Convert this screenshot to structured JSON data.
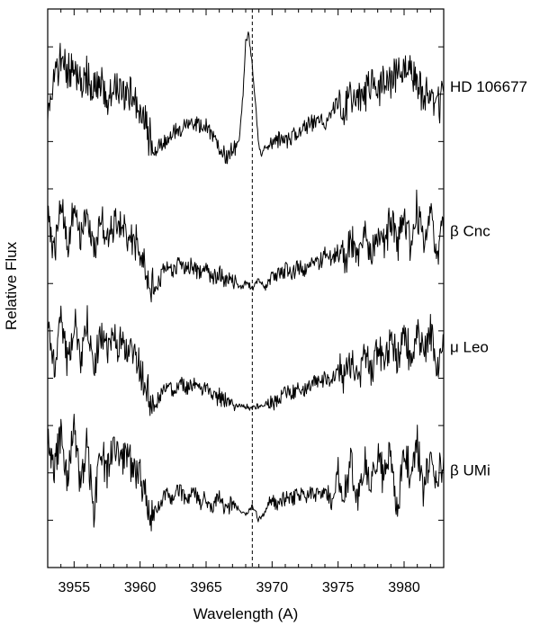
{
  "chart_data": {
    "type": "line",
    "title": "",
    "xlabel": "Wavelength (A)",
    "ylabel": "Relative Flux",
    "xlim": [
      3953,
      3983
    ],
    "x_ticks": [
      3955,
      3960,
      3965,
      3970,
      3975,
      3980
    ],
    "x_tick_labels": [
      "3955",
      "3960",
      "3965",
      "3970",
      "3975",
      "3980"
    ],
    "y_tick_labels": false,
    "reference_line": {
      "x": 3968.5,
      "style": "dashed"
    },
    "grid": false,
    "legend": "none",
    "series": [
      {
        "name": "HD 106677",
        "display_offset": 3.9,
        "x": [
          3953.0,
          3953.5,
          3954.0,
          3954.5,
          3955.0,
          3955.5,
          3956.0,
          3956.5,
          3957.0,
          3957.5,
          3958.0,
          3958.5,
          3959.0,
          3959.5,
          3960.0,
          3960.5,
          3961.0,
          3961.5,
          3962.0,
          3962.5,
          3963.0,
          3963.5,
          3964.0,
          3964.5,
          3965.0,
          3965.5,
          3966.0,
          3966.5,
          3967.0,
          3967.5,
          3967.8,
          3968.0,
          3968.2,
          3968.5,
          3968.8,
          3969.0,
          3969.2,
          3969.5,
          3970.0,
          3970.5,
          3971.0,
          3971.5,
          3972.0,
          3972.5,
          3973.0,
          3973.5,
          3974.0,
          3974.5,
          3975.0,
          3975.5,
          3976.0,
          3976.5,
          3977.0,
          3977.5,
          3978.0,
          3978.5,
          3979.0,
          3979.5,
          3980.0,
          3980.5,
          3981.0,
          3981.5,
          3982.0,
          3982.5,
          3983.0
        ],
        "y": [
          0.55,
          0.75,
          0.95,
          0.85,
          0.9,
          0.7,
          0.8,
          0.6,
          0.75,
          0.5,
          0.72,
          0.68,
          0.6,
          0.62,
          0.45,
          0.25,
          0.0,
          0.05,
          0.1,
          0.2,
          0.22,
          0.28,
          0.3,
          0.25,
          0.28,
          0.15,
          0.05,
          -0.05,
          0.0,
          0.1,
          0.6,
          1.15,
          1.25,
          0.9,
          0.4,
          0.05,
          -0.05,
          0.05,
          0.1,
          0.12,
          0.1,
          0.15,
          0.2,
          0.25,
          0.3,
          0.35,
          0.3,
          0.4,
          0.5,
          0.45,
          0.55,
          0.6,
          0.55,
          0.7,
          0.65,
          0.75,
          0.7,
          0.85,
          0.8,
          0.9,
          0.7,
          0.55,
          0.6,
          0.5,
          0.55
        ]
      },
      {
        "name": "β Cnc",
        "display_offset": 2.6,
        "x": [
          3953.0,
          3953.5,
          3954.0,
          3954.5,
          3955.0,
          3955.5,
          3956.0,
          3956.5,
          3957.0,
          3957.5,
          3958.0,
          3958.5,
          3959.0,
          3959.5,
          3960.0,
          3960.5,
          3961.0,
          3961.5,
          3962.0,
          3962.5,
          3963.0,
          3963.5,
          3964.0,
          3964.5,
          3965.0,
          3965.5,
          3966.0,
          3966.5,
          3967.0,
          3967.5,
          3968.0,
          3968.5,
          3969.0,
          3969.5,
          3970.0,
          3970.5,
          3971.0,
          3971.5,
          3972.0,
          3972.5,
          3973.0,
          3973.5,
          3974.0,
          3974.5,
          3975.0,
          3975.5,
          3976.0,
          3976.5,
          3977.0,
          3977.5,
          3978.0,
          3978.5,
          3979.0,
          3979.5,
          3980.0,
          3980.5,
          3981.0,
          3981.5,
          3982.0,
          3982.5,
          3983.0
        ],
        "y": [
          0.7,
          0.2,
          0.8,
          0.3,
          0.75,
          0.4,
          0.65,
          0.2,
          0.6,
          0.35,
          0.55,
          0.5,
          0.45,
          0.4,
          0.2,
          0.0,
          -0.15,
          -0.05,
          0.1,
          0.0,
          0.15,
          0.05,
          0.1,
          0.0,
          0.05,
          -0.05,
          0.0,
          -0.1,
          -0.05,
          -0.15,
          -0.1,
          -0.15,
          -0.05,
          -0.15,
          -0.05,
          0.0,
          0.05,
          0.0,
          0.1,
          0.05,
          0.15,
          0.1,
          0.2,
          0.15,
          0.25,
          0.1,
          0.35,
          0.15,
          0.45,
          0.2,
          0.5,
          0.3,
          0.6,
          0.25,
          0.65,
          0.3,
          0.7,
          0.35,
          0.65,
          0.2,
          0.55
        ]
      },
      {
        "name": "μ Leo",
        "display_offset": 1.4,
        "x": [
          3953.0,
          3953.5,
          3954.0,
          3954.5,
          3955.0,
          3955.5,
          3956.0,
          3956.5,
          3957.0,
          3957.5,
          3958.0,
          3958.5,
          3959.0,
          3959.5,
          3960.0,
          3960.5,
          3961.0,
          3961.5,
          3962.0,
          3962.5,
          3963.0,
          3963.5,
          3964.0,
          3964.5,
          3965.0,
          3965.5,
          3966.0,
          3966.5,
          3967.0,
          3967.5,
          3968.0,
          3968.5,
          3969.0,
          3969.5,
          3970.0,
          3970.5,
          3971.0,
          3971.5,
          3972.0,
          3972.5,
          3973.0,
          3973.5,
          3974.0,
          3974.5,
          3975.0,
          3975.5,
          3976.0,
          3976.5,
          3977.0,
          3977.5,
          3978.0,
          3978.5,
          3979.0,
          3979.5,
          3980.0,
          3980.5,
          3981.0,
          3981.5,
          3982.0,
          3982.5,
          3983.0
        ],
        "y": [
          0.7,
          0.15,
          0.75,
          0.25,
          0.7,
          0.3,
          0.65,
          0.2,
          0.6,
          0.4,
          0.5,
          0.45,
          0.4,
          0.35,
          0.2,
          0.0,
          -0.2,
          -0.1,
          0.05,
          -0.05,
          0.05,
          0.0,
          0.05,
          -0.05,
          0.0,
          -0.1,
          -0.1,
          -0.15,
          -0.15,
          -0.2,
          -0.2,
          -0.22,
          -0.2,
          -0.18,
          -0.15,
          -0.1,
          -0.05,
          -0.05,
          0.0,
          0.0,
          0.05,
          0.05,
          0.1,
          0.05,
          0.2,
          0.1,
          0.3,
          0.1,
          0.4,
          0.15,
          0.45,
          0.2,
          0.55,
          0.25,
          0.6,
          0.3,
          0.65,
          0.3,
          0.6,
          0.2,
          0.55
        ]
      },
      {
        "name": "β UMi",
        "display_offset": 0.2,
        "x": [
          3953.0,
          3953.5,
          3954.0,
          3954.5,
          3955.0,
          3955.5,
          3956.0,
          3956.5,
          3957.0,
          3957.5,
          3958.0,
          3958.5,
          3959.0,
          3959.5,
          3960.0,
          3960.5,
          3961.0,
          3961.5,
          3962.0,
          3962.5,
          3963.0,
          3963.5,
          3964.0,
          3964.5,
          3965.0,
          3965.5,
          3966.0,
          3966.5,
          3967.0,
          3967.5,
          3968.0,
          3968.5,
          3969.0,
          3969.5,
          3970.0,
          3970.5,
          3971.0,
          3971.5,
          3972.0,
          3972.5,
          3973.0,
          3973.5,
          3974.0,
          3974.5,
          3975.0,
          3975.5,
          3976.0,
          3976.5,
          3977.0,
          3977.5,
          3978.0,
          3978.5,
          3979.0,
          3979.5,
          3980.0,
          3980.5,
          3981.0,
          3981.5,
          3982.0,
          3982.5,
          3983.0
        ],
        "y": [
          0.7,
          0.3,
          0.75,
          0.2,
          0.8,
          0.15,
          0.6,
          -0.1,
          0.55,
          0.3,
          0.6,
          0.45,
          0.5,
          0.3,
          0.25,
          0.05,
          -0.15,
          -0.05,
          0.1,
          0.0,
          0.15,
          0.0,
          0.1,
          0.0,
          0.05,
          -0.05,
          0.05,
          -0.1,
          0.0,
          -0.1,
          -0.15,
          -0.05,
          -0.2,
          -0.1,
          0.0,
          -0.05,
          0.05,
          0.0,
          0.1,
          0.05,
          0.1,
          0.05,
          0.15,
          0.0,
          0.3,
          0.05,
          0.4,
          0.0,
          0.45,
          0.1,
          0.5,
          0.2,
          0.6,
          -0.15,
          0.55,
          0.3,
          0.6,
          0.1,
          0.55,
          0.2,
          0.5
        ]
      }
    ]
  }
}
